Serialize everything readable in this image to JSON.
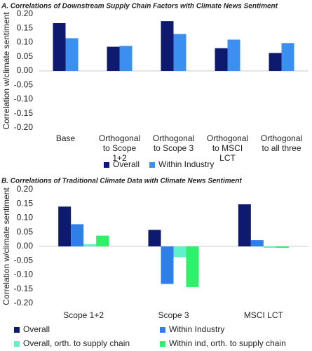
{
  "chart_data": [
    {
      "type": "bar",
      "title": "A. Correlations of Downstream Supply Chain Factors with Climate News Sentiment",
      "y_label": "Correlation w/climate sentiment",
      "categories": [
        "Base",
        "Orthogonal to Scope 1+2",
        "Orthogonal to Scope 3",
        "Orthogonal to MSCI LCT",
        "Orthogonal to all three"
      ],
      "series": [
        {
          "name": "Overall",
          "color": "#0d1a6e",
          "values": [
            0.168,
            0.085,
            0.175,
            0.08,
            0.063
          ]
        },
        {
          "name": "Within Industry",
          "color": "#3b8ff0",
          "values": [
            0.115,
            0.088,
            0.13,
            0.11,
            0.098
          ]
        }
      ],
      "ylim": [
        -0.2,
        0.2
      ],
      "yticks": [
        {
          "value": 0.2,
          "label": "0.20"
        },
        {
          "value": 0.15,
          "label": "0.15"
        },
        {
          "value": 0.1,
          "label": "0.10"
        },
        {
          "value": 0.05,
          "label": "0.05"
        },
        {
          "value": 0,
          "label": "0.00"
        },
        {
          "value": -0.05,
          "label": "-0.05"
        },
        {
          "value": -0.1,
          "label": "-0.10"
        },
        {
          "value": -0.15,
          "label": "-0.15"
        },
        {
          "value": -0.2,
          "label": "-0.20"
        }
      ],
      "grid": false
    },
    {
      "type": "bar",
      "title": "B. Correlations of Traditional Climate Data with Climate News Sentiment",
      "y_label": "Correlation w/climate sentiment",
      "categories": [
        "Scope 1+2",
        "Scope 3",
        "MSCI LCT"
      ],
      "series": [
        {
          "name": "Overall",
          "color": "#0d1a6e",
          "values": [
            0.14,
            0.058,
            0.148
          ]
        },
        {
          "name": "Within Industry",
          "color": "#2f7fe8",
          "values": [
            0.078,
            -0.132,
            0.022
          ]
        },
        {
          "name": "Overall, orth. to supply chain",
          "color": "#5ff2c8",
          "values": [
            0.008,
            -0.038,
            -0.005
          ]
        },
        {
          "name": "Within ind, orth. to supply chain",
          "color": "#2ef06a",
          "values": [
            0.038,
            -0.143,
            -0.005
          ]
        }
      ],
      "ylim": [
        -0.2,
        0.2
      ],
      "yticks": [
        {
          "value": 0.2,
          "label": "0.20"
        },
        {
          "value": 0.15,
          "label": "0.15"
        },
        {
          "value": 0.1,
          "label": "0.10"
        },
        {
          "value": 0.05,
          "label": "0.05"
        },
        {
          "value": 0,
          "label": "0.00"
        },
        {
          "value": -0.05,
          "label": "-0.05"
        },
        {
          "value": -0.1,
          "label": "-0.10"
        },
        {
          "value": -0.15,
          "label": "-0.15"
        },
        {
          "value": -0.2,
          "label": "-0.20"
        }
      ],
      "grid": false
    }
  ]
}
